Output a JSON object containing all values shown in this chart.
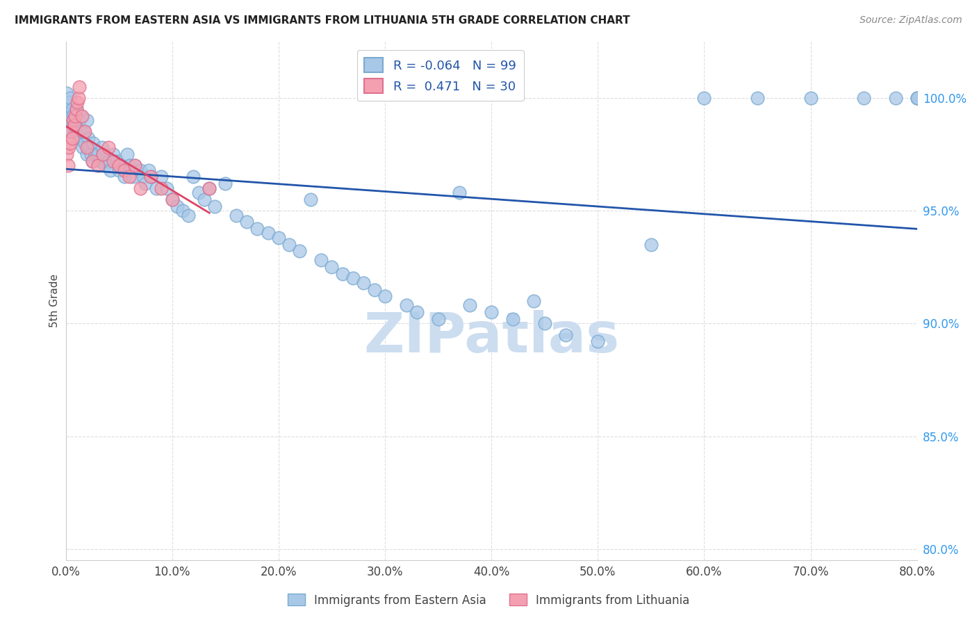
{
  "title": "IMMIGRANTS FROM EASTERN ASIA VS IMMIGRANTS FROM LITHUANIA 5TH GRADE CORRELATION CHART",
  "source": "Source: ZipAtlas.com",
  "ylabel": "5th Grade",
  "xlabel_ticks": [
    "0.0%",
    "10.0%",
    "20.0%",
    "30.0%",
    "40.0%",
    "50.0%",
    "60.0%",
    "70.0%",
    "80.0%"
  ],
  "xlabel_vals": [
    0.0,
    10.0,
    20.0,
    30.0,
    40.0,
    50.0,
    60.0,
    70.0,
    80.0
  ],
  "ylabel_ticks": [
    "80.0%",
    "85.0%",
    "90.0%",
    "95.0%",
    "100.0%"
  ],
  "ylabel_vals": [
    80.0,
    85.0,
    90.0,
    95.0,
    100.0
  ],
  "xlim": [
    0.0,
    80.0
  ],
  "ylim": [
    79.5,
    102.5
  ],
  "blue_R": -0.064,
  "blue_N": 99,
  "pink_R": 0.471,
  "pink_N": 30,
  "blue_color": "#a8c8e8",
  "pink_color": "#f4a0b0",
  "blue_edge_color": "#7aaad0",
  "pink_edge_color": "#e07090",
  "blue_line_color": "#2255aa",
  "pink_line_color": "#dd4466",
  "legend_label_blue": "Immigrants from Eastern Asia",
  "legend_label_pink": "Immigrants from Lithuania",
  "watermark": "ZIPatlas",
  "watermark_color": "#ccddf0",
  "background_color": "#ffffff",
  "grid_color": "#dddddd",
  "blue_x": [
    0.1,
    0.2,
    0.3,
    0.3,
    0.4,
    0.5,
    0.5,
    0.6,
    0.7,
    0.7,
    0.8,
    0.9,
    1.0,
    1.0,
    1.1,
    1.2,
    1.3,
    1.4,
    1.5,
    1.6,
    1.7,
    1.8,
    2.0,
    2.0,
    2.1,
    2.2,
    2.4,
    2.5,
    2.6,
    2.8,
    3.0,
    3.2,
    3.4,
    3.5,
    3.7,
    4.0,
    4.2,
    4.5,
    4.8,
    5.0,
    5.2,
    5.5,
    5.8,
    6.0,
    6.3,
    6.5,
    7.0,
    7.3,
    7.5,
    7.8,
    8.0,
    8.5,
    9.0,
    9.5,
    10.0,
    10.5,
    11.0,
    11.5,
    12.0,
    12.5,
    13.0,
    13.5,
    14.0,
    15.0,
    16.0,
    17.0,
    18.0,
    19.0,
    20.0,
    21.0,
    22.0,
    23.0,
    24.0,
    25.0,
    26.0,
    27.0,
    28.0,
    29.0,
    30.0,
    32.0,
    33.0,
    35.0,
    37.0,
    38.0,
    40.0,
    42.0,
    44.0,
    45.0,
    47.0,
    50.0,
    55.0,
    60.0,
    65.0,
    70.0,
    75.0,
    78.0,
    80.0,
    80.0,
    80.0
  ],
  "blue_y": [
    100.2,
    99.5,
    99.8,
    98.8,
    100.0,
    99.2,
    98.5,
    99.5,
    99.2,
    98.8,
    99.0,
    98.5,
    98.8,
    99.5,
    98.5,
    98.2,
    99.0,
    99.2,
    98.5,
    97.8,
    98.5,
    98.0,
    99.0,
    97.5,
    98.2,
    97.8,
    97.5,
    97.2,
    98.0,
    97.5,
    97.5,
    97.2,
    97.8,
    97.5,
    97.0,
    97.2,
    96.8,
    97.5,
    97.2,
    96.8,
    97.0,
    96.5,
    97.5,
    97.0,
    96.5,
    97.0,
    96.8,
    96.5,
    96.2,
    96.8,
    96.5,
    96.0,
    96.5,
    96.0,
    95.5,
    95.2,
    95.0,
    94.8,
    96.5,
    95.8,
    95.5,
    96.0,
    95.2,
    96.2,
    94.8,
    94.5,
    94.2,
    94.0,
    93.8,
    93.5,
    93.2,
    95.5,
    92.8,
    92.5,
    92.2,
    92.0,
    91.8,
    91.5,
    91.2,
    90.8,
    90.5,
    90.2,
    95.8,
    90.8,
    90.5,
    90.2,
    91.0,
    90.0,
    89.5,
    89.2,
    93.5,
    100.0,
    100.0,
    100.0,
    100.0,
    100.0,
    100.0,
    100.0,
    100.0
  ],
  "pink_x": [
    0.1,
    0.2,
    0.3,
    0.4,
    0.5,
    0.6,
    0.7,
    0.8,
    0.9,
    1.0,
    1.1,
    1.2,
    1.3,
    1.5,
    1.8,
    2.0,
    2.5,
    3.0,
    3.5,
    4.0,
    4.5,
    5.0,
    5.5,
    6.0,
    6.5,
    7.0,
    8.0,
    9.0,
    10.0,
    13.5
  ],
  "pink_y": [
    97.5,
    97.0,
    97.8,
    98.0,
    98.5,
    98.2,
    99.0,
    98.8,
    99.2,
    99.5,
    99.8,
    100.0,
    100.5,
    99.2,
    98.5,
    97.8,
    97.2,
    97.0,
    97.5,
    97.8,
    97.2,
    97.0,
    96.8,
    96.5,
    97.0,
    96.0,
    96.5,
    96.0,
    95.5,
    96.0
  ]
}
